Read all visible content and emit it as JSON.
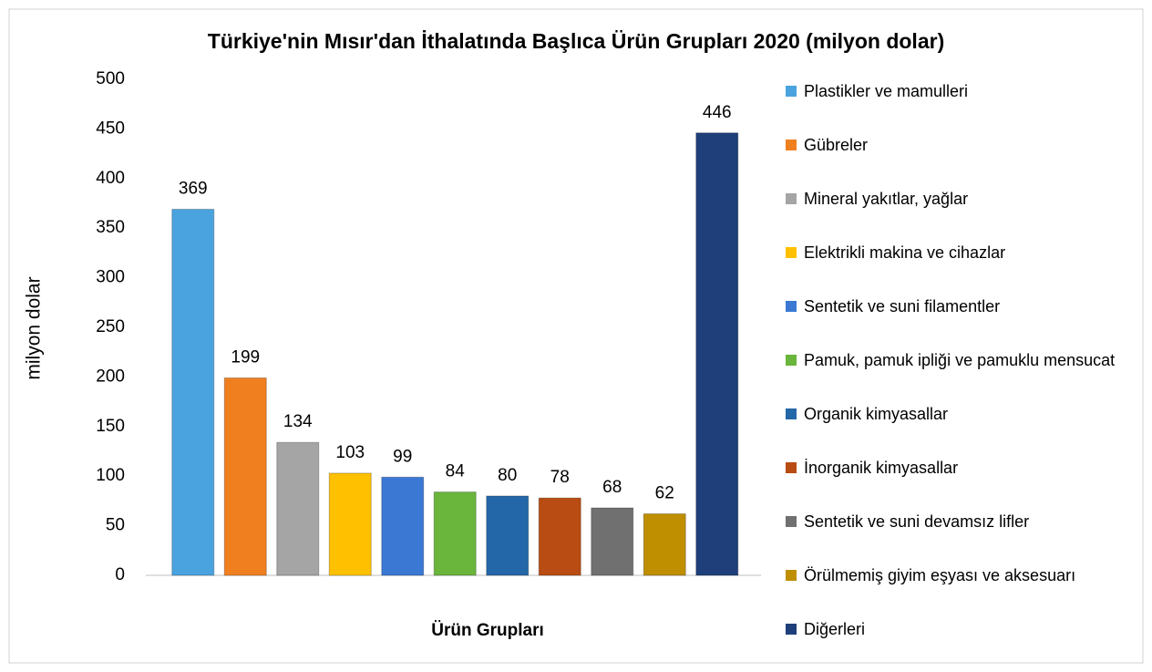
{
  "chart_data": {
    "type": "bar",
    "title": "Türkiye'nin Mısır'dan İthalatında Başlıca Ürün Grupları 2020 (milyon dolar)",
    "x_label": "Ürün Grupları",
    "y_label": "milyon dolar",
    "categories": [
      "Plastikler ve mamulleri",
      "Gübreler",
      "Mineral yakıtlar, yağlar",
      "Elektrikli makina ve cihazlar",
      "Sentetik ve suni filamentler",
      "Pamuk, pamuk ipliği ve pamuklu mensucat",
      "Organik kimyasallar",
      "İnorganik kimyasallar",
      "Sentetik ve suni devamsız lifler",
      "Örülmemiş giyim eşyası ve aksesuarı",
      "Diğerleri"
    ],
    "values": [
      369,
      199,
      134,
      103,
      99,
      84,
      80,
      78,
      68,
      62,
      446
    ],
    "colors": [
      "#4aa3df",
      "#f07f20",
      "#a5a5a5",
      "#ffc000",
      "#3a78d4",
      "#6ab53c",
      "#2467a8",
      "#b84c12",
      "#707070",
      "#bf8f00",
      "#1f3f7a"
    ],
    "ylim": [
      0,
      500
    ],
    "yticks": [
      0,
      50,
      100,
      150,
      200,
      250,
      300,
      350,
      400,
      450,
      500
    ],
    "grid": false,
    "legend": "right"
  }
}
